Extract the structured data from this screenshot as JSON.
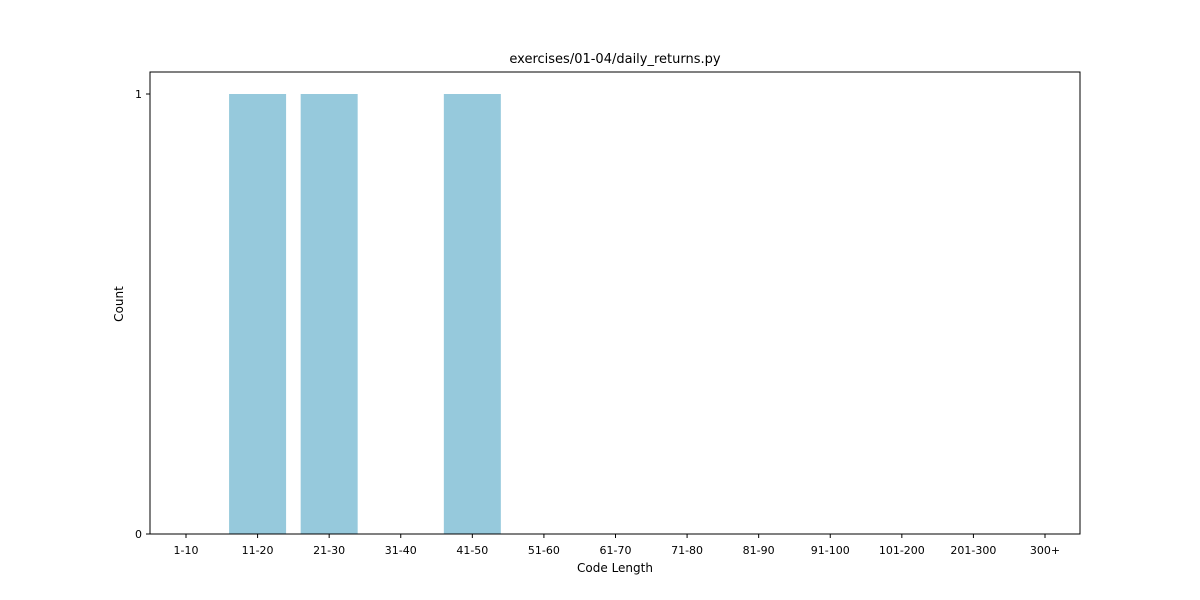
{
  "chart_data": {
    "type": "bar",
    "title": "exercises/01-04/daily_returns.py",
    "xlabel": "Code Length",
    "ylabel": "Count",
    "categories": [
      "1-10",
      "11-20",
      "21-30",
      "31-40",
      "41-50",
      "51-60",
      "61-70",
      "71-80",
      "81-90",
      "91-100",
      "101-200",
      "201-300",
      "300+"
    ],
    "values": [
      0,
      1,
      1,
      0,
      1,
      0,
      0,
      0,
      0,
      0,
      0,
      0,
      0
    ],
    "yticks": [
      "0",
      "1"
    ],
    "ylim": [
      0,
      1.05
    ],
    "grid": false,
    "bar_color": "#96c9dc"
  }
}
